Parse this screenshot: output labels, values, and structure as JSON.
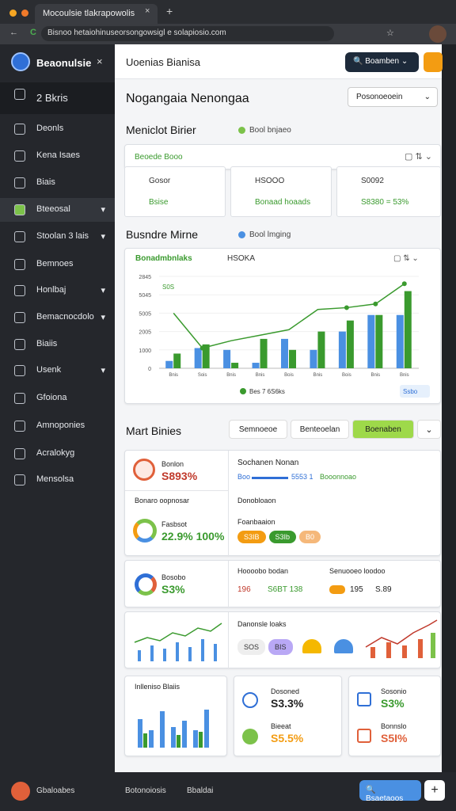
{
  "browser": {
    "tab": "Mocoulsie tlakrapowolis",
    "url": "Bisnoo hetaiohinuseorsongowsigl e solapiosio.com"
  },
  "sidebar": {
    "brand": "Beaonulsie",
    "items": [
      "2 Bkris",
      "Deonls",
      "Kena Isaes",
      "Biais",
      "Bteeosal",
      "Stoolan 3 lais",
      "Bemnoes",
      "Honlbaj",
      "Bemacnocdolo",
      "Biaiis",
      "Usenk",
      "Gfoiona",
      "Amnoponies",
      "Acralokyg",
      "Mensolsa"
    ]
  },
  "header": {
    "title": "Uoenias Bianisa",
    "button": "Boamben"
  },
  "heading": "Nogangaia Nenongaa",
  "select": "Posonoeoein",
  "section1": {
    "title": "Meniclot Birier",
    "status": "Bool bnjaeo",
    "card_title": "Beoede Booo",
    "cells": [
      [
        "Gosor",
        "Bsise"
      ],
      [
        "HSOOO",
        "Bonaad hoaads"
      ],
      [
        "S0092",
        "S8380 = 53%"
      ]
    ]
  },
  "section2": {
    "title": "Busndre Mirne",
    "status": "Bool lmging",
    "chart_data": {
      "type": "bar",
      "title": "Bonadmbnlaks",
      "subtitle": "HSOKA",
      "annotation": "S0S",
      "legend": "Bes 7 6S6ks",
      "badge": "Ssbo",
      "categories": [
        "Bnis",
        "Sois",
        "Bnis",
        "Bnis",
        "Bois",
        "Bnis",
        "Bois",
        "Bnis",
        "Bnis"
      ],
      "ylim": [
        0,
        5
      ],
      "yticks": [
        0,
        {
          "value": 1,
          "label": "1000"
        },
        {
          "value": 2,
          "label": "2005"
        },
        {
          "value": 3,
          "label": "5005"
        },
        {
          "value": 4,
          "label": "5045"
        },
        {
          "value": 5,
          "label": "2845"
        }
      ],
      "series": [
        {
          "name": "blue",
          "color": "#4a90e2",
          "values": [
            0.4,
            1.1,
            1.0,
            0.3,
            1.6,
            1.0,
            2.0,
            2.9,
            2.9
          ]
        },
        {
          "name": "green",
          "color": "#3a9a2e",
          "values": [
            0.8,
            1.3,
            0.3,
            1.6,
            1.0,
            2.0,
            2.6,
            2.9,
            4.2
          ]
        },
        {
          "name": "line",
          "color": "#3a9a2e",
          "values": [
            3.0,
            1.1,
            1.5,
            1.8,
            2.1,
            3.2,
            3.3,
            3.5,
            4.6
          ]
        }
      ]
    }
  },
  "section3": {
    "title": "Mart Binies",
    "tabs": [
      "Semnoeoe",
      "Benteoelan",
      "Boenaben"
    ],
    "a": {
      "label": "Bonlon",
      "value": "S893%",
      "sub": "Bonaro oopnosar",
      "label2": "Fasbsot",
      "value2": "22.9% 100%",
      "right_title": "Sochanen Nonan",
      "progress": "Boo",
      "progress_value": "5553 1",
      "progress_label": "Booonnoao",
      "right_sub": "Donobloaon",
      "right_label": "Foanbaaion",
      "pills": [
        "S3IB",
        "S3Ib",
        "B0"
      ]
    },
    "b": {
      "label": "Bosobo",
      "value": "S3%",
      "t1": "Hoooobo bodan",
      "v1": "196",
      "v1b": "S6BT 138",
      "t2": "Senuooeo loodoo",
      "v2": "195",
      "v2b": "S.89"
    },
    "c": {
      "title": "Danonsle loaks",
      "pills": [
        "SOS",
        "BIS"
      ]
    },
    "d": {
      "title": "Inlleniso Blaiis"
    },
    "e": {
      "l1": "Dosoned",
      "v1": "S3.3%",
      "l2": "Bieeat",
      "v2": "S5.5%"
    },
    "f": {
      "l1": "Sosonio",
      "v1": "S3%",
      "l2": "Bonnslo",
      "v2": "S5I%"
    }
  },
  "footer": {
    "items": [
      "Gbaloabes",
      "Botonoiosis",
      "Bbaldai"
    ],
    "button": "Bsaetaoos"
  }
}
